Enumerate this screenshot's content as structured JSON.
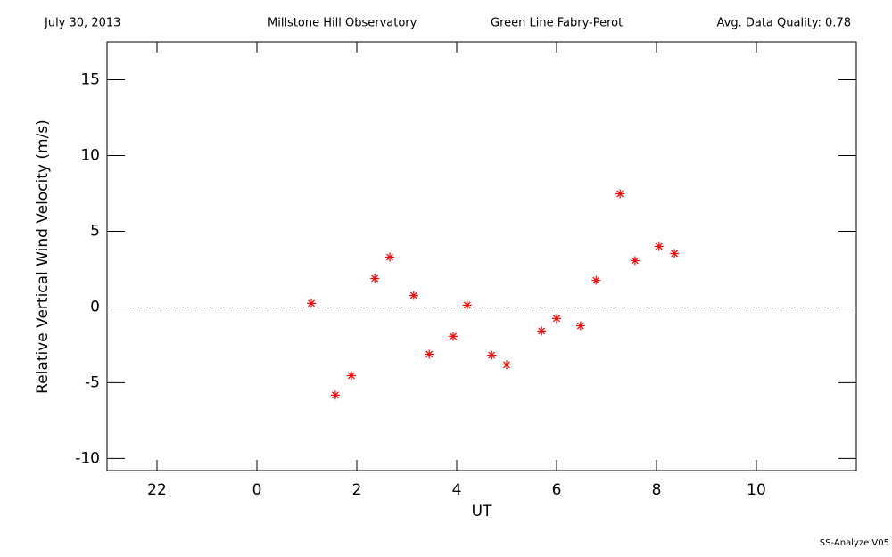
{
  "header": {
    "date": "July 30, 2013",
    "site": "Millstone Hill Observatory",
    "instrument": "Green Line Fabry-Perot",
    "quality": "Avg. Data Quality: 0.78"
  },
  "footer": "SS-Analyze V05",
  "chart_data": {
    "type": "scatter",
    "x_label": "UT",
    "y_label": "Relative Vertical Wind Velocity (m/s)",
    "x": [
      1.09,
      1.57,
      1.89,
      2.36,
      2.66,
      3.14,
      3.45,
      3.93,
      4.21,
      4.7,
      5.0,
      5.7,
      6.0,
      6.48,
      6.79,
      7.27,
      7.57,
      8.05,
      8.36
    ],
    "values": [
      0.24,
      -5.82,
      -4.53,
      1.88,
      3.29,
      0.76,
      -3.12,
      -1.94,
      0.12,
      -3.18,
      -3.82,
      -1.59,
      -0.76,
      -1.24,
      1.76,
      7.47,
      3.06,
      4.0,
      3.53
    ],
    "color": "#ff0000",
    "xlim": [
      -3,
      12
    ],
    "xticks": [
      {
        "value": -2,
        "label": "22"
      },
      0,
      2,
      4,
      6,
      8,
      10
    ],
    "ylim": [
      -10.8,
      17.5
    ],
    "yticks": [
      -10,
      -5,
      0,
      5,
      10,
      15
    ],
    "reference_line": 0,
    "grid": false
  }
}
